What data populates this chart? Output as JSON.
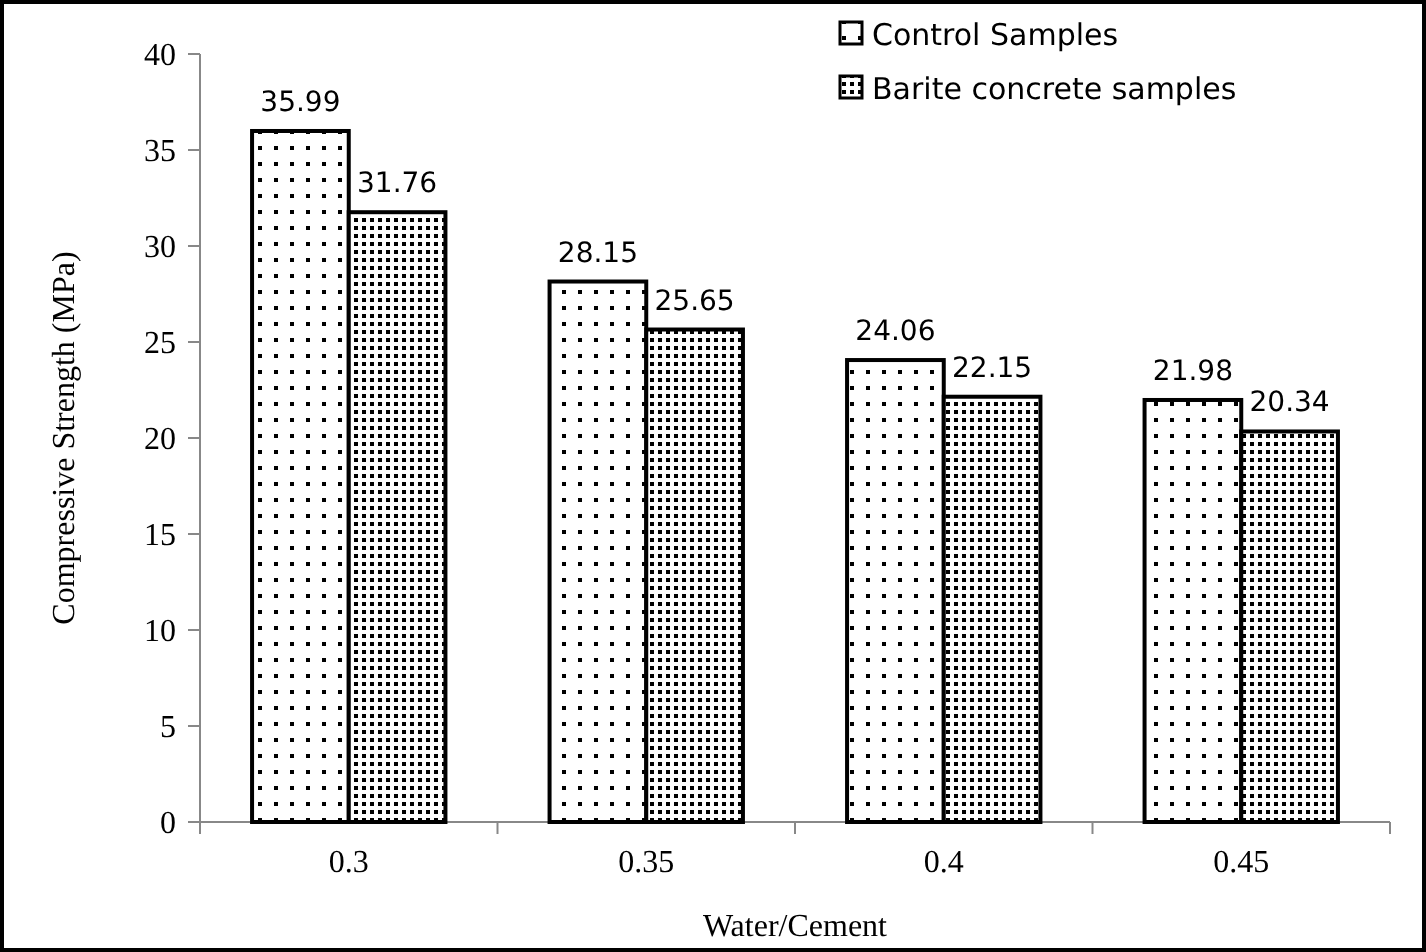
{
  "chart_data": {
    "type": "bar",
    "xlabel": "Water/Cement",
    "ylabel": "Compressive Strength (MPa)",
    "categories": [
      "0.3",
      "0.35",
      "0.4",
      "0.45"
    ],
    "series": [
      {
        "name": "Control Samples",
        "color": "#000000",
        "values": [
          35.99,
          28.15,
          24.06,
          21.98
        ]
      },
      {
        "name": "Barite concrete samples",
        "color": "#000000",
        "values": [
          31.76,
          25.65,
          22.15,
          20.34
        ]
      }
    ],
    "ylim": [
      0,
      40
    ],
    "yticks": [
      0,
      5,
      10,
      15,
      20,
      25,
      30,
      35,
      40
    ],
    "data_labels": true,
    "legend": "top right",
    "grid": false
  }
}
